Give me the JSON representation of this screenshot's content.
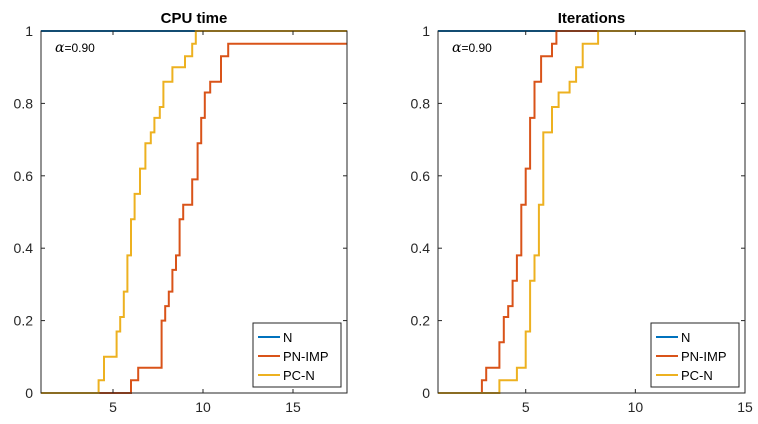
{
  "chart_data": [
    {
      "type": "line",
      "title": "CPU time",
      "annotation": {
        "symbol": "α",
        "text": "=0.90"
      },
      "xlim": [
        1,
        18
      ],
      "ylim": [
        0,
        1
      ],
      "xticks": [
        5,
        10,
        15
      ],
      "yticks": [
        0,
        0.2,
        0.4,
        0.6,
        0.8,
        1
      ],
      "xtick_labels": [
        "5",
        "10",
        "15"
      ],
      "ytick_labels": [
        "0",
        "0.2",
        "0.4",
        "0.6",
        "0.8",
        "1"
      ],
      "legend": "bottom-right",
      "series": [
        {
          "name": "N",
          "color": "#0072BD",
          "x": [
            1,
            18
          ],
          "y": [
            1,
            1
          ]
        },
        {
          "name": "PN-IMP",
          "color": "#D95319",
          "x": [
            1,
            6.0,
            6.2,
            6.4,
            6.9,
            7.7,
            7.9,
            8.1,
            8.3,
            8.5,
            8.7,
            8.9,
            9.1,
            9.4,
            9.7,
            9.9,
            10.1,
            10.4,
            10.6,
            11.0,
            11.4,
            18
          ],
          "y": [
            0,
            0.035,
            0.035,
            0.07,
            0.07,
            0.2,
            0.24,
            0.28,
            0.34,
            0.38,
            0.48,
            0.52,
            0.52,
            0.59,
            0.69,
            0.76,
            0.83,
            0.86,
            0.86,
            0.93,
            0.965,
            0.965
          ]
        },
        {
          "name": "PC-N",
          "color": "#EDB120",
          "x": [
            1,
            4.2,
            4.5,
            5.2,
            5.4,
            5.6,
            5.8,
            6.0,
            6.2,
            6.5,
            6.8,
            7.1,
            7.3,
            7.6,
            7.8,
            8.3,
            8.5,
            9.0,
            9.4,
            9.6,
            18
          ],
          "y": [
            0,
            0.035,
            0.1,
            0.17,
            0.21,
            0.28,
            0.38,
            0.48,
            0.55,
            0.62,
            0.69,
            0.72,
            0.76,
            0.79,
            0.86,
            0.9,
            0.9,
            0.93,
            0.965,
            1.0,
            1.0
          ]
        }
      ]
    },
    {
      "type": "line",
      "title": "Iterations",
      "annotation": {
        "symbol": "α",
        "text": "=0.90"
      },
      "xlim": [
        1,
        15
      ],
      "ylim": [
        0,
        1
      ],
      "xticks": [
        5,
        10,
        15
      ],
      "yticks": [
        0,
        0.2,
        0.4,
        0.6,
        0.8,
        1
      ],
      "xtick_labels": [
        "5",
        "10",
        "15"
      ],
      "ytick_labels": [
        "0",
        "0.2",
        "0.4",
        "0.6",
        "0.8",
        "1"
      ],
      "legend": "bottom-right",
      "series": [
        {
          "name": "N",
          "color": "#0072BD",
          "x": [
            1,
            15
          ],
          "y": [
            1,
            1
          ]
        },
        {
          "name": "PN-IMP",
          "color": "#D95319",
          "x": [
            1,
            3.0,
            3.2,
            3.8,
            4.0,
            4.2,
            4.4,
            4.6,
            4.8,
            5.0,
            5.2,
            5.4,
            5.7,
            6.0,
            6.2,
            6.4,
            15
          ],
          "y": [
            0,
            0.035,
            0.07,
            0.14,
            0.21,
            0.24,
            0.31,
            0.38,
            0.52,
            0.62,
            0.76,
            0.86,
            0.93,
            0.93,
            0.965,
            1.0,
            1.0
          ]
        },
        {
          "name": "PC-N",
          "color": "#EDB120",
          "x": [
            1,
            3.8,
            4.6,
            5.0,
            5.2,
            5.4,
            5.6,
            5.8,
            6.2,
            6.5,
            7.0,
            7.3,
            7.6,
            8.0,
            8.3,
            15
          ],
          "y": [
            0,
            0.035,
            0.07,
            0.17,
            0.31,
            0.38,
            0.52,
            0.72,
            0.79,
            0.83,
            0.86,
            0.9,
            0.965,
            0.965,
            1.0,
            1.0
          ]
        }
      ]
    }
  ]
}
